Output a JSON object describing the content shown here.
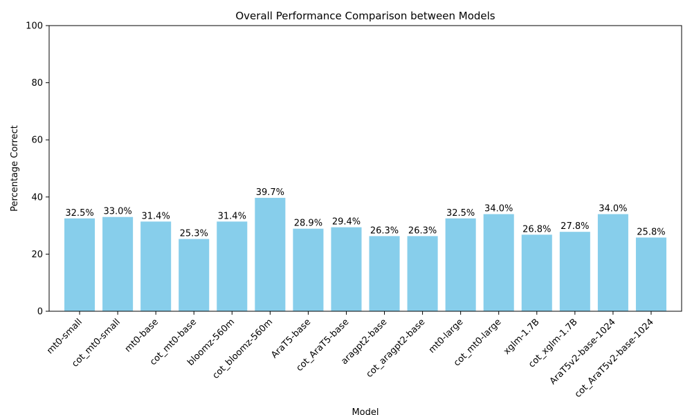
{
  "chart_data": {
    "type": "bar",
    "title": "Overall Performance Comparison between Models",
    "xlabel": "Model",
    "ylabel": "Percentage Correct",
    "ylim": [
      0,
      100
    ],
    "yticks": [
      0,
      20,
      40,
      60,
      80,
      100
    ],
    "categories": [
      "mt0-small",
      "cot_mt0-small",
      "mt0-base",
      "cot_mt0-base",
      "bloomz-560m",
      "cot_bloomz-560m",
      "AraT5-base",
      "cot_AraT5-base",
      "aragpt2-base",
      "cot_aragpt2-base",
      "mt0-large",
      "cot_mt0-large",
      "xglm-1.7B",
      "cot_xglm-1.7B",
      "AraT5v2-base-1024",
      "cot_AraT5v2-base-1024"
    ],
    "values": [
      32.5,
      33.0,
      31.4,
      25.3,
      31.4,
      39.7,
      28.9,
      29.4,
      26.3,
      26.3,
      32.5,
      34.0,
      26.8,
      27.8,
      34.0,
      25.8
    ],
    "value_labels": [
      "32.5%",
      "33.0%",
      "31.4%",
      "25.3%",
      "31.4%",
      "39.7%",
      "28.9%",
      "29.4%",
      "26.3%",
      "26.3%",
      "32.5%",
      "34.0%",
      "26.8%",
      "27.8%",
      "34.0%",
      "25.8%"
    ],
    "bar_color": "#87ceeb",
    "grid": false,
    "legend": "none"
  }
}
